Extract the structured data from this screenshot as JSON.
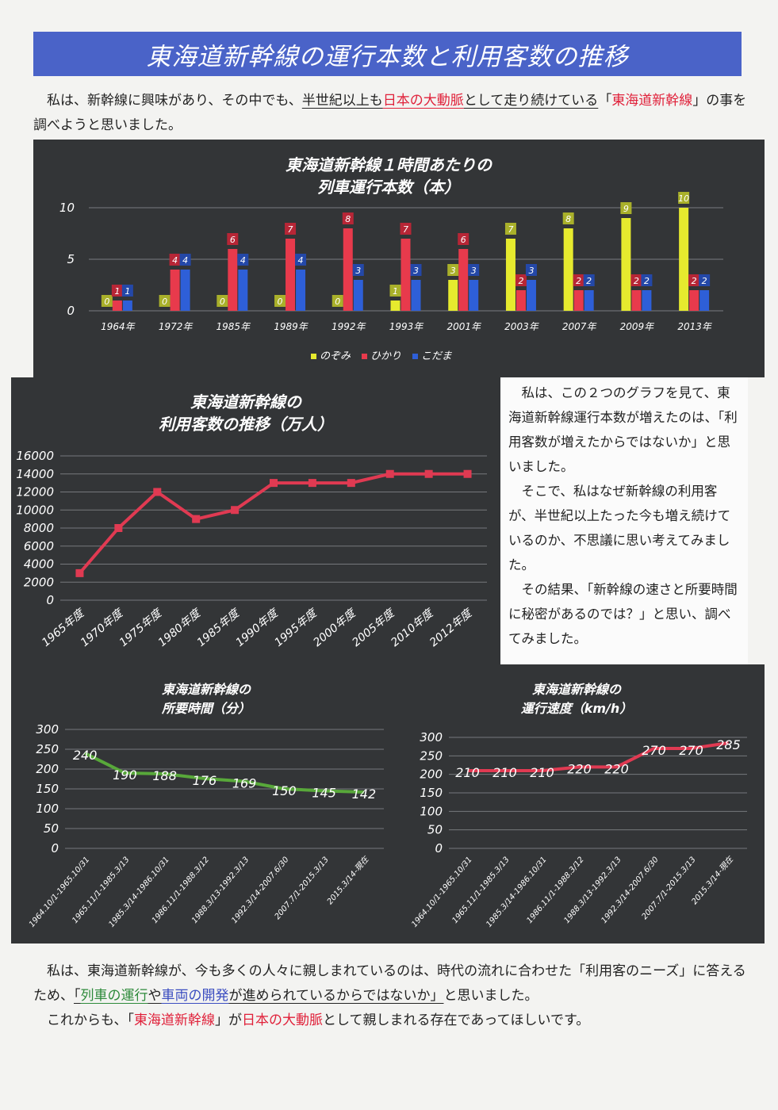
{
  "page": {
    "title": "東海道新幹線の運行本数と利用客数の推移",
    "intro": {
      "p1": "私は、新幹線に興味があり、その中でも、",
      "p2": "半世紀以上も",
      "p3": "日本の大動脈",
      "p4": "として走り続けている",
      "p5": "「",
      "p6": "東海道新幹線",
      "p7": "」の事を調べようと思いました。"
    },
    "side_text": [
      "私は、この２つのグラフを見て、東海道新幹線運行本数が増えたのは、「利用客数が増えたからではないか」と思いました。",
      "そこで、私はなぜ新幹線の利用客が、半世紀以上たった今も増え続けているのか、不思議に思い考えてみました。",
      "その結果、「新幹線の速さと所要時間に秘密があるのでは？」と思い、調べてみました。"
    ],
    "conclusion": {
      "c1": "私は、東海道新幹線が、今も多くの人々に親しまれているのは、時代の流れに合わせた「利用客のニーズ」に答えるため、",
      "c2": "「",
      "c3": "列車の運行",
      "c4": "や",
      "c5": "車両の開発",
      "c6": "が進められているからではないか」",
      "c7": "と思いました。",
      "c8": "これからも、「",
      "c9": "東海道新幹線",
      "c10": "」が",
      "c11": "日本の大動脈",
      "c12": "として親しまれる存在であってほしいです。"
    }
  },
  "colors": {
    "nozomi": "#e6ea2e",
    "hikari": "#e83a4c",
    "kodama": "#2e5fd8",
    "line_red": "#e03a52",
    "line_green": "#58a83a",
    "dark_bg": "#333537",
    "title_bar": "#4a63c8"
  },
  "chart_data": [
    {
      "id": "trains",
      "type": "bar",
      "title": "東海道新幹線１時間あたりの",
      "subtitle": "列車運行本数（本）",
      "categories": [
        "1964年",
        "1972年",
        "1985年",
        "1989年",
        "1992年",
        "1993年",
        "2001年",
        "2003年",
        "2007年",
        "2009年",
        "2013年"
      ],
      "series": [
        {
          "name": "のぞみ",
          "values": [
            0,
            0,
            0,
            0,
            0,
            1,
            3,
            7,
            8,
            9,
            10
          ]
        },
        {
          "name": "ひかり",
          "values": [
            1,
            4,
            6,
            7,
            8,
            7,
            6,
            2,
            2,
            2,
            2
          ]
        },
        {
          "name": "こだま",
          "values": [
            1,
            4,
            4,
            4,
            3,
            3,
            3,
            3,
            2,
            2,
            2
          ]
        }
      ],
      "ylim": [
        0,
        10
      ],
      "yticks": [
        0,
        5,
        10
      ],
      "legend": "bottom",
      "grid": true
    },
    {
      "id": "passengers",
      "type": "line",
      "title": "東海道新幹線の",
      "subtitle": "利用客数の推移（万人）",
      "categories": [
        "1965年度",
        "1970年度",
        "1975年度",
        "1980年度",
        "1985年度",
        "1990年度",
        "1995年度",
        "2000年度",
        "2005年度",
        "2010年度",
        "2012年度"
      ],
      "values": [
        3000,
        8000,
        12000,
        9000,
        10000,
        13000,
        13000,
        13000,
        14000,
        14000,
        14000
      ],
      "ylim": [
        0,
        16000
      ],
      "yticks": [
        0,
        2000,
        4000,
        6000,
        8000,
        10000,
        12000,
        14000,
        16000
      ],
      "grid": true
    },
    {
      "id": "time",
      "type": "line",
      "title": "東海道新幹線の",
      "subtitle": "所要時間（分）",
      "categories": [
        "1964.10/1-1965.10/31",
        "1965.11/1-1985.3/13",
        "1985.3/14-1986.10/31",
        "1986.11/1-1988.3/12",
        "1988.3/13-1992.3/13",
        "1992.3/14-2007.6/30",
        "2007.7/1-2015.3/13",
        "2015.3/14-現在"
      ],
      "values": [
        240,
        190,
        188,
        176,
        169,
        150,
        145,
        142
      ],
      "ylim": [
        0,
        300
      ],
      "yticks": [
        0,
        50,
        100,
        150,
        200,
        250,
        300
      ],
      "grid": true
    },
    {
      "id": "speed",
      "type": "line",
      "title": "東海道新幹線の",
      "subtitle": "運行速度（km/h）",
      "categories": [
        "1964.10/1-1965.10/31",
        "1965.11/1-1985.3/13",
        "1985.3/14-1986.10/31",
        "1986.11/1-1988.3/12",
        "1988.3/13-1992.3/13",
        "1992.3/14-2007.6/30",
        "2007.7/1-2015.3/13",
        "2015.3/14-現在"
      ],
      "values": [
        210,
        210,
        210,
        220,
        220,
        270,
        270,
        285
      ],
      "ylim": [
        0,
        300
      ],
      "yticks": [
        0,
        50,
        100,
        150,
        200,
        250,
        300
      ],
      "grid": true
    }
  ]
}
